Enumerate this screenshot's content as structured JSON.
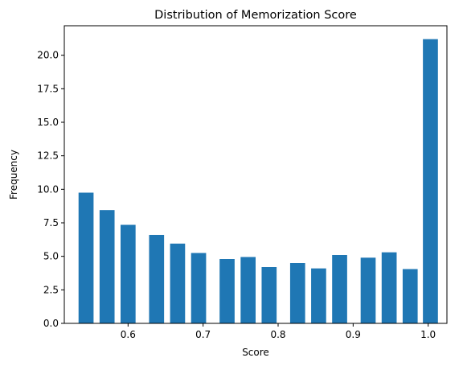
{
  "chart_data": {
    "type": "bar",
    "title": "Distribution of Memorization Score",
    "xlabel": "Score",
    "ylabel": "Frequency",
    "xlim": [
      0.515,
      1.025
    ],
    "ylim": [
      0,
      22.2
    ],
    "xticks": [
      0.6,
      0.7,
      0.8,
      0.9,
      1.0
    ],
    "xtick_labels": [
      "0.6",
      "0.7",
      "0.8",
      "0.9",
      "1.0"
    ],
    "yticks": [
      0.0,
      2.5,
      5.0,
      7.5,
      10.0,
      12.5,
      15.0,
      17.5,
      20.0
    ],
    "ytick_labels": [
      "0.0",
      "2.5",
      "5.0",
      "7.5",
      "10.0",
      "12.5",
      "15.0",
      "17.5",
      "20.0"
    ],
    "bar_width": 0.02,
    "x": [
      0.544,
      0.572,
      0.6,
      0.638,
      0.666,
      0.694,
      0.732,
      0.76,
      0.788,
      0.826,
      0.854,
      0.882,
      0.92,
      0.948,
      0.976,
      1.003
    ],
    "values": [
      9.75,
      8.45,
      7.35,
      6.6,
      5.95,
      5.25,
      4.8,
      4.95,
      4.2,
      4.5,
      4.1,
      5.1,
      4.9,
      5.3,
      4.05,
      21.2
    ],
    "grid": false,
    "bar_color": "#1f77b4"
  }
}
